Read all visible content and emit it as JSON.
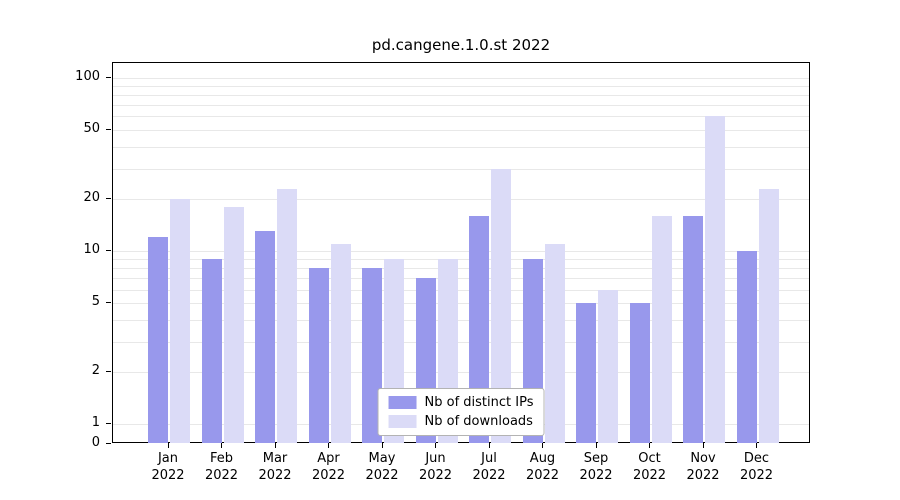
{
  "chart_data": {
    "type": "bar",
    "title": "pd.cangene.1.0.st 2022",
    "categories": [
      "Jan",
      "Feb",
      "Mar",
      "Apr",
      "May",
      "Jun",
      "Jul",
      "Aug",
      "Sep",
      "Oct",
      "Nov",
      "Dec"
    ],
    "category_year": "2022",
    "series": [
      {
        "name": "Nb of distinct IPs",
        "color": "#9898ec",
        "values": [
          12,
          9,
          13,
          8,
          8,
          7,
          16,
          9,
          5,
          5,
          16,
          10
        ]
      },
      {
        "name": "Nb of downloads",
        "color": "#dbdbf7",
        "values": [
          20,
          18,
          23,
          11,
          9,
          9,
          30,
          11,
          6,
          16,
          60,
          23
        ]
      }
    ],
    "yscale": "log",
    "ylabel": "",
    "xlabel": "",
    "yticks": [
      100,
      50,
      20,
      10,
      5,
      2,
      1,
      0
    ],
    "ylim_log": [
      0.77,
      122
    ],
    "minor_gridlines": [
      1,
      2,
      3,
      4,
      5,
      6,
      7,
      8,
      9,
      10,
      20,
      30,
      40,
      50,
      60,
      70,
      80,
      90,
      100
    ],
    "grid": true,
    "legend_position": "bottom-center"
  },
  "colors": {
    "axis": "#000000",
    "gridline": "#e8e8e8",
    "legend_border": "#b3b3b3",
    "background": "#ffffff"
  }
}
